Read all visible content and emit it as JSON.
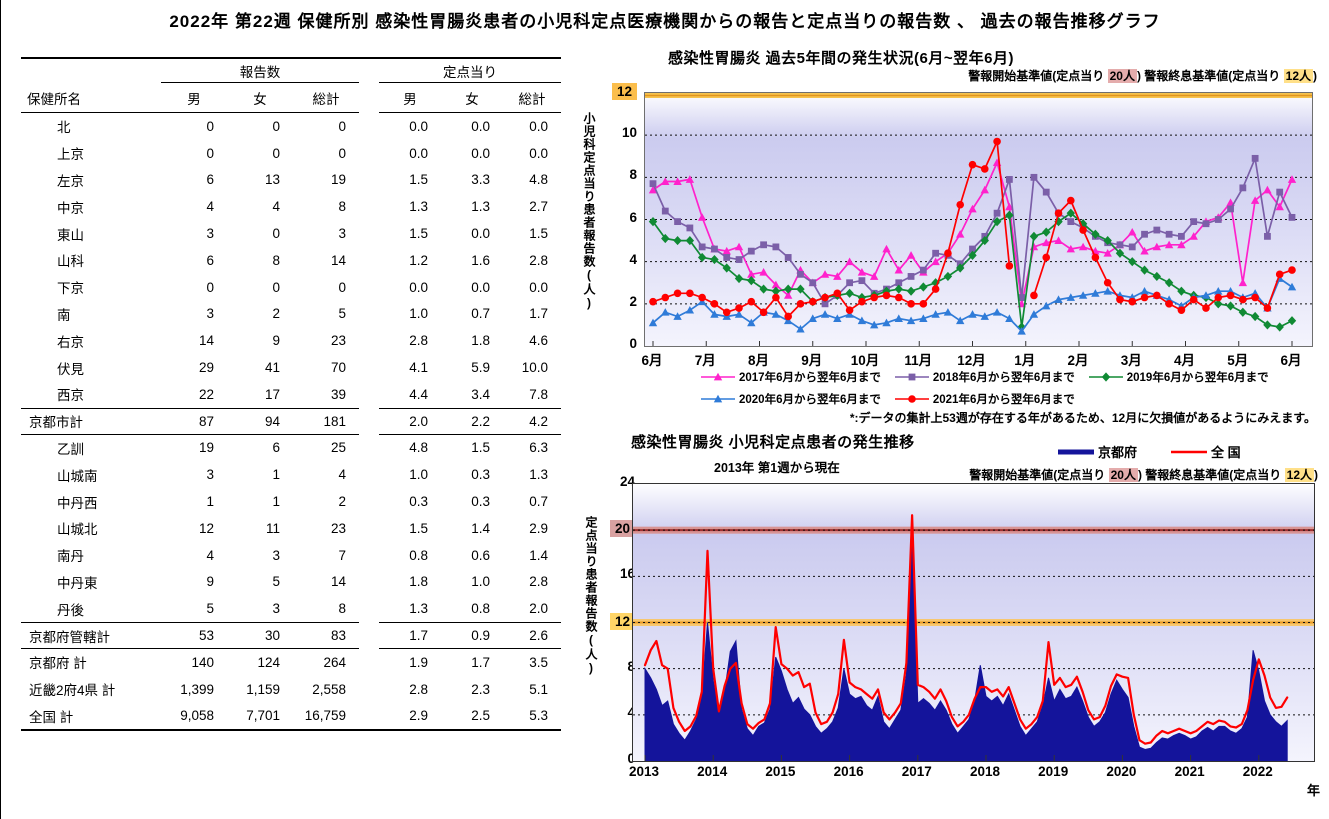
{
  "page_title": "2022年 第22週 保健所別 感染性胃腸炎患者の小児科定点医療機関からの報告と定点当りの報告数 、 過去の報告推移グラフ",
  "table": {
    "header": {
      "name_label": "保健所名",
      "reports_label": "報告数",
      "per_label": "定点当り",
      "sub": [
        "男",
        "女",
        "総計"
      ]
    },
    "rows": [
      {
        "name": "北",
        "type": "item",
        "reports": [
          "0",
          "0",
          "0"
        ],
        "per": [
          "0.0",
          "0.0",
          "0.0"
        ]
      },
      {
        "name": "上京",
        "type": "item",
        "reports": [
          "0",
          "0",
          "0"
        ],
        "per": [
          "0.0",
          "0.0",
          "0.0"
        ]
      },
      {
        "name": "左京",
        "type": "item",
        "reports": [
          "6",
          "13",
          "19"
        ],
        "per": [
          "1.5",
          "3.3",
          "4.8"
        ]
      },
      {
        "name": "中京",
        "type": "item",
        "reports": [
          "4",
          "4",
          "8"
        ],
        "per": [
          "1.3",
          "1.3",
          "2.7"
        ]
      },
      {
        "name": "東山",
        "type": "item",
        "reports": [
          "3",
          "0",
          "3"
        ],
        "per": [
          "1.5",
          "0.0",
          "1.5"
        ]
      },
      {
        "name": "山科",
        "type": "item",
        "reports": [
          "6",
          "8",
          "14"
        ],
        "per": [
          "1.2",
          "1.6",
          "2.8"
        ]
      },
      {
        "name": "下京",
        "type": "item",
        "reports": [
          "0",
          "0",
          "0"
        ],
        "per": [
          "0.0",
          "0.0",
          "0.0"
        ]
      },
      {
        "name": "南",
        "type": "item",
        "reports": [
          "3",
          "2",
          "5"
        ],
        "per": [
          "1.0",
          "0.7",
          "1.7"
        ]
      },
      {
        "name": "右京",
        "type": "item",
        "reports": [
          "14",
          "9",
          "23"
        ],
        "per": [
          "2.8",
          "1.8",
          "4.6"
        ]
      },
      {
        "name": "伏見",
        "type": "item",
        "reports": [
          "29",
          "41",
          "70"
        ],
        "per": [
          "4.1",
          "5.9",
          "10.0"
        ]
      },
      {
        "name": "西京",
        "type": "item",
        "reports": [
          "22",
          "17",
          "39"
        ],
        "per": [
          "4.4",
          "3.4",
          "7.8"
        ]
      },
      {
        "name": "京都市計",
        "type": "subtotal",
        "reports": [
          "87",
          "94",
          "181"
        ],
        "per": [
          "2.0",
          "2.2",
          "4.2"
        ]
      },
      {
        "name": "乙訓",
        "type": "item",
        "reports": [
          "19",
          "6",
          "25"
        ],
        "per": [
          "4.8",
          "1.5",
          "6.3"
        ]
      },
      {
        "name": "山城南",
        "type": "item",
        "reports": [
          "3",
          "1",
          "4"
        ],
        "per": [
          "1.0",
          "0.3",
          "1.3"
        ]
      },
      {
        "name": "中丹西",
        "type": "item",
        "reports": [
          "1",
          "1",
          "2"
        ],
        "per": [
          "0.3",
          "0.3",
          "0.7"
        ]
      },
      {
        "name": "山城北",
        "type": "item",
        "reports": [
          "12",
          "11",
          "23"
        ],
        "per": [
          "1.5",
          "1.4",
          "2.9"
        ]
      },
      {
        "name": "南丹",
        "type": "item",
        "reports": [
          "4",
          "3",
          "7"
        ],
        "per": [
          "0.8",
          "0.6",
          "1.4"
        ]
      },
      {
        "name": "中丹東",
        "type": "item",
        "reports": [
          "9",
          "5",
          "14"
        ],
        "per": [
          "1.8",
          "1.0",
          "2.8"
        ]
      },
      {
        "name": "丹後",
        "type": "item",
        "reports": [
          "5",
          "3",
          "8"
        ],
        "per": [
          "1.3",
          "0.8",
          "2.0"
        ]
      },
      {
        "name": "京都府管轄計",
        "type": "subtotal",
        "reports": [
          "53",
          "30",
          "83"
        ],
        "per": [
          "1.7",
          "0.9",
          "2.6"
        ]
      },
      {
        "name": "京都府  計",
        "type": "grand",
        "reports": [
          "140",
          "124",
          "264"
        ],
        "per": [
          "1.9",
          "1.7",
          "3.5"
        ]
      },
      {
        "name": "近畿2府4県  計",
        "type": "grand",
        "reports": [
          "1,399",
          "1,159",
          "2,558"
        ],
        "per": [
          "2.8",
          "2.3",
          "5.1"
        ]
      },
      {
        "name": "全国  計",
        "type": "grand",
        "reports": [
          "9,058",
          "7,701",
          "16,759"
        ],
        "per": [
          "2.9",
          "2.5",
          "5.3"
        ]
      }
    ]
  },
  "alert": {
    "p1": "警報開始基準値(定点当り ",
    "v1": "20人",
    "p2": ") 警報終息基準値(定点当り ",
    "v2": "12人",
    "p3": ")"
  },
  "chart_data": [
    {
      "type": "line",
      "title": "感染性胃腸炎 過去5年間の発生状況(6月~翌年6月)",
      "ylabel": "小児科定点当り患者報告数(人)",
      "ylim": [
        0,
        12
      ],
      "yticks": [
        0,
        2,
        4,
        6,
        8,
        10,
        12
      ],
      "ytick_highlights": [
        {
          "value": 12,
          "bg": "#FBBE4C"
        }
      ],
      "grid_values": [
        2,
        4,
        6,
        8,
        10
      ],
      "xticklabels": [
        "6月",
        "7月",
        "8月",
        "9月",
        "10月",
        "11月",
        "12月",
        "1月",
        "2月",
        "3月",
        "4月",
        "5月",
        "6月"
      ],
      "thresholds": [
        {
          "name": "警報終息基準値",
          "value": 12,
          "band": "#F6C34F",
          "color": "#E2951F"
        }
      ],
      "footnote": "*:データの集計上53週が存在する年があるため、12月に欠損値があるようにみえます。",
      "legend_position": "bottom",
      "series": [
        {
          "name": "2017年6月から翌年6月まで",
          "color": "#FF22CC",
          "marker": "triangle",
          "values": [
            7.4,
            7.8,
            7.8,
            7.9,
            6.1,
            4.6,
            4.5,
            4.7,
            3.4,
            3.5,
            2.9,
            2.4,
            3.6,
            3.0,
            3.4,
            3.3,
            4.0,
            3.5,
            3.3,
            4.6,
            3.6,
            4.3,
            3.5,
            4.0,
            4.4,
            5.3,
            6.5,
            7.4,
            8.7,
            6.6,
            2.0,
            4.7,
            4.9,
            5.0,
            4.6,
            4.7,
            4.5,
            4.4,
            4.8,
            5.4,
            4.5,
            4.7,
            4.8,
            4.8,
            5.2,
            5.9,
            6.1,
            6.8,
            3.0,
            6.9,
            7.4,
            6.6,
            7.9
          ]
        },
        {
          "name": "2018年6月から翌年6月まで",
          "color": "#7B5FA8",
          "marker": "square",
          "values": [
            7.7,
            6.4,
            5.9,
            5.6,
            4.7,
            4.6,
            4.2,
            4.1,
            4.5,
            4.8,
            4.7,
            4.2,
            3.4,
            3.0,
            2.0,
            2.4,
            3.0,
            3.1,
            2.5,
            2.7,
            3.0,
            3.3,
            3.6,
            4.4,
            4.3,
            3.9,
            4.6,
            5.2,
            6.3,
            7.9,
            2.3,
            8.0,
            7.3,
            6.3,
            5.9,
            5.6,
            5.2,
            4.9,
            4.8,
            4.7,
            5.3,
            5.5,
            5.3,
            5.2,
            5.9,
            5.8,
            6.0,
            6.5,
            7.5,
            8.9,
            5.2,
            7.3,
            6.1
          ]
        },
        {
          "name": "2019年6月から翌年6月まで",
          "color": "#108A34",
          "marker": "diamond",
          "values": [
            5.9,
            5.1,
            5.0,
            5.0,
            4.2,
            4.1,
            3.7,
            3.2,
            3.1,
            2.7,
            2.6,
            2.7,
            2.7,
            2.1,
            2.3,
            2.4,
            2.5,
            2.3,
            2.4,
            2.6,
            2.7,
            2.6,
            2.8,
            3.0,
            3.3,
            3.7,
            4.3,
            5.0,
            5.9,
            6.2,
            0.9,
            5.2,
            5.4,
            5.9,
            6.3,
            5.8,
            5.3,
            5.0,
            4.4,
            4.0,
            3.6,
            3.3,
            3.0,
            2.6,
            2.4,
            2.3,
            2.0,
            1.9,
            1.6,
            1.4,
            1.0,
            0.9,
            1.2
          ]
        },
        {
          "name": "2020年6月から翌年6月まで",
          "color": "#2F7BD8",
          "marker": "triangle",
          "values": [
            1.1,
            1.6,
            1.4,
            1.7,
            2.1,
            1.5,
            1.4,
            1.5,
            1.1,
            1.6,
            1.5,
            1.2,
            0.8,
            1.3,
            1.5,
            1.3,
            1.5,
            1.2,
            1.0,
            1.1,
            1.3,
            1.2,
            1.3,
            1.5,
            1.6,
            1.2,
            1.5,
            1.4,
            1.6,
            1.3,
            0.7,
            1.5,
            1.9,
            2.2,
            2.3,
            2.4,
            2.5,
            2.6,
            2.4,
            2.3,
            2.6,
            2.4,
            2.2,
            1.9,
            2.3,
            2.4,
            2.6,
            2.6,
            2.3,
            2.5,
            1.8,
            3.2,
            2.8
          ]
        },
        {
          "name": "2021年6月から翌年6月まで",
          "color": "#FF0000",
          "marker": "circle",
          "values": [
            2.1,
            2.3,
            2.5,
            2.5,
            2.3,
            2.0,
            1.6,
            1.8,
            2.1,
            1.6,
            2.3,
            1.4,
            2.0,
            2.1,
            2.3,
            2.5,
            1.7,
            2.1,
            2.3,
            2.4,
            2.3,
            2.0,
            2.0,
            2.7,
            4.4,
            6.7,
            8.6,
            8.4,
            9.7,
            3.8,
            null,
            2.4,
            4.2,
            6.3,
            6.9,
            5.5,
            4.2,
            3.0,
            2.2,
            2.1,
            2.3,
            2.4,
            2.0,
            1.7,
            2.2,
            1.8,
            2.3,
            2.4,
            2.2,
            2.3,
            1.8,
            3.4,
            3.6
          ]
        }
      ]
    },
    {
      "type": "area+line",
      "title": "感染性胃腸炎 小児科定点患者の発生推移",
      "subtitle": "2013年 第1週から現在",
      "ylabel": "定点当り患者報告数(人)",
      "xlabel": "年",
      "ylim": [
        0,
        24
      ],
      "yticks": [
        0,
        4,
        8,
        12,
        16,
        20,
        24
      ],
      "ytick_highlights": [
        {
          "value": 20,
          "bg": "#D9A1A1"
        },
        {
          "value": 12,
          "bg": "#FFD567"
        }
      ],
      "grid_values": [
        4,
        8,
        16
      ],
      "x_start": 2013,
      "x_unit": "month",
      "xticklabels": [
        "2013",
        "2014",
        "2015",
        "2016",
        "2017",
        "2018",
        "2019",
        "2020",
        "2021",
        "2022"
      ],
      "thresholds": [
        {
          "name": "警報開始基準値",
          "value": 20,
          "band": "#D89494",
          "color": "#A03030"
        },
        {
          "name": "警報終息基準値",
          "value": 12,
          "band": "#F7C76F",
          "color": "#E89A25"
        }
      ],
      "series": [
        {
          "name": "京都府",
          "style": "area",
          "color": "#14149B",
          "values": [
            8.0,
            7.2,
            6.2,
            4.8,
            5.2,
            3.2,
            2.4,
            1.8,
            2.6,
            3.6,
            5.5,
            12.0,
            7.0,
            4.0,
            6.0,
            9.5,
            10.4,
            4.5,
            2.8,
            2.2,
            3.0,
            3.3,
            4.5,
            9.0,
            7.8,
            6.2,
            5.0,
            5.5,
            4.5,
            4.0,
            3.0,
            2.4,
            2.8,
            3.4,
            4.6,
            8.0,
            5.8,
            5.4,
            5.6,
            4.8,
            4.4,
            5.6,
            3.4,
            2.8,
            3.6,
            4.4,
            7.5,
            20.3,
            5.0,
            5.4,
            5.0,
            4.4,
            5.2,
            4.4,
            3.2,
            2.4,
            3.0,
            3.6,
            5.2,
            8.3,
            5.6,
            5.2,
            5.6,
            4.8,
            5.8,
            4.4,
            3.0,
            2.2,
            2.8,
            3.4,
            4.8,
            7.2,
            5.2,
            6.2,
            5.4,
            5.6,
            6.4,
            5.2,
            3.8,
            3.0,
            3.4,
            4.2,
            5.8,
            7.0,
            6.2,
            5.5,
            3.0,
            1.2,
            1.0,
            1.1,
            1.6,
            2.0,
            1.9,
            2.2,
            2.4,
            2.2,
            1.9,
            2.1,
            2.6,
            2.9,
            2.6,
            3.0,
            3.0,
            2.6,
            2.4,
            2.8,
            3.8,
            9.6,
            7.8,
            5.2,
            4.0,
            3.4,
            3.0,
            3.5
          ]
        },
        {
          "name": "全  国",
          "style": "line",
          "color": "#FF0000",
          "values": [
            8.3,
            9.6,
            10.4,
            8.3,
            8.0,
            4.6,
            3.4,
            2.6,
            3.0,
            3.9,
            6.0,
            18.2,
            8.0,
            4.3,
            6.5,
            8.0,
            8.5,
            5.0,
            3.2,
            2.8,
            3.3,
            3.6,
            5.0,
            11.6,
            8.4,
            8.0,
            7.4,
            7.7,
            6.4,
            6.7,
            4.2,
            3.2,
            3.4,
            4.2,
            5.8,
            10.5,
            6.8,
            6.4,
            6.2,
            5.8,
            5.4,
            6.2,
            4.2,
            3.6,
            4.2,
            5.0,
            8.5,
            21.3,
            6.6,
            6.4,
            6.0,
            5.4,
            6.2,
            5.2,
            3.8,
            3.0,
            3.4,
            4.0,
            5.4,
            6.4,
            6.4,
            6.0,
            6.2,
            5.6,
            6.4,
            5.0,
            3.6,
            2.8,
            3.2,
            3.8,
            5.2,
            10.3,
            6.6,
            7.2,
            6.4,
            6.6,
            7.3,
            6.0,
            4.4,
            3.6,
            3.8,
            4.8,
            6.5,
            7.5,
            7.3,
            7.2,
            4.0,
            1.8,
            1.5,
            1.6,
            2.2,
            2.6,
            2.4,
            2.6,
            2.8,
            2.6,
            2.4,
            2.6,
            3.0,
            3.4,
            3.2,
            3.5,
            3.4,
            3.0,
            2.9,
            3.2,
            4.4,
            7.0,
            8.8,
            7.4,
            5.5,
            4.6,
            4.7,
            5.5
          ]
        }
      ]
    }
  ]
}
